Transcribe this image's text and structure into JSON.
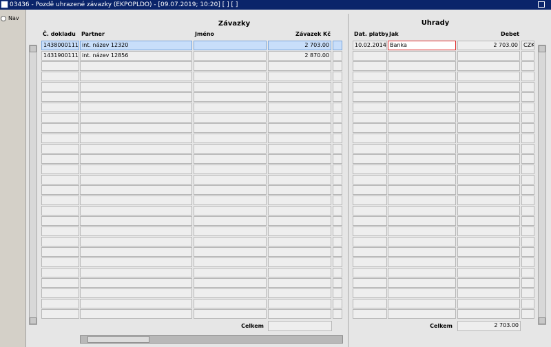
{
  "window": {
    "title": "03436 - Pozdě uhrazené závazky (EKPOPLDO) - [09.07.2019; 10:20]  [ ]  [ ]"
  },
  "sidebar": {
    "radio_label": "Nav"
  },
  "liabilities": {
    "title": "Závazky",
    "columns": {
      "doc": "Č. dokladu",
      "partner": "Partner",
      "name": "Jméno",
      "amount": "Závazek Kč"
    },
    "rows": [
      {
        "doc": "1438000111",
        "partner": "int. název 12320",
        "amount": "2 703.00"
      },
      {
        "doc": "1431900111",
        "partner": "int. název 12856",
        "amount": "2 870.00"
      }
    ],
    "total_label": "Celkem"
  },
  "payments": {
    "title": "Úhrady",
    "columns": {
      "date": "Dat. platby",
      "method": "Jak",
      "debit": "Debet"
    },
    "rows": [
      {
        "date": "10.02.2014",
        "method": "Banka",
        "debit": "2 703.00",
        "currency": "CZK"
      }
    ],
    "total_label": "Celkem",
    "total_value": "2 703.00"
  }
}
